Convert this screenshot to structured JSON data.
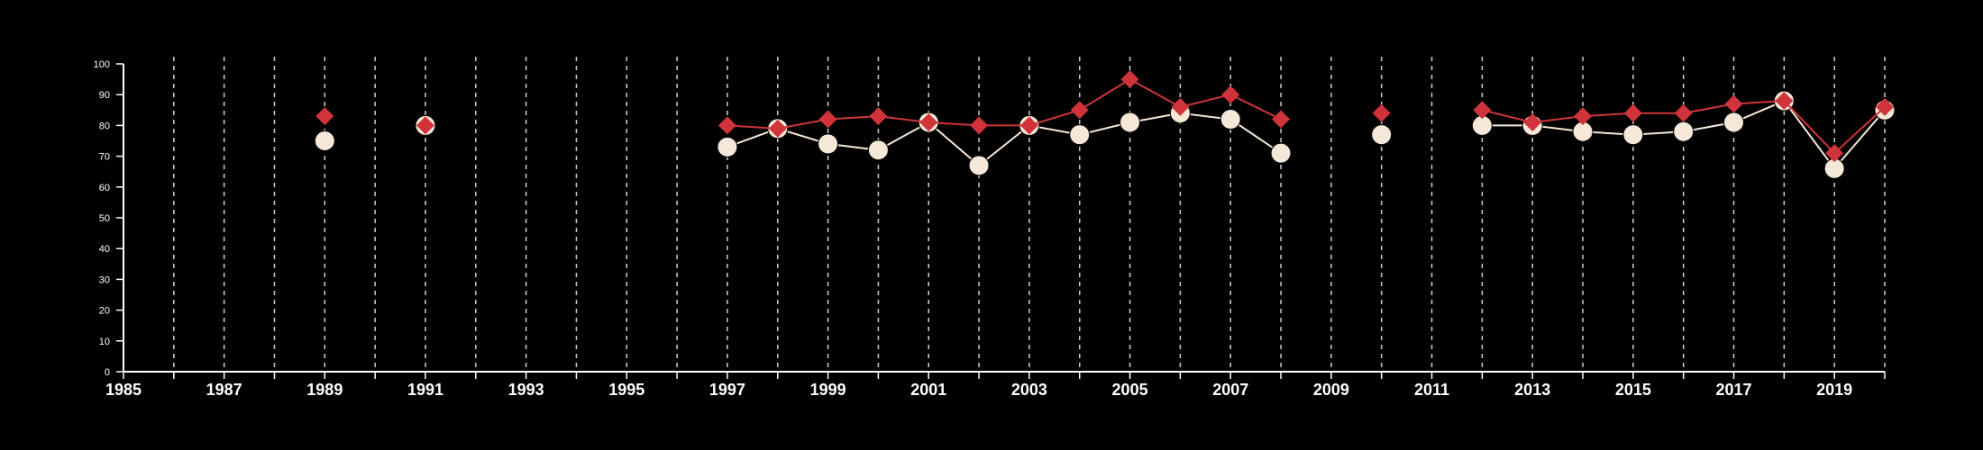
{
  "chart_data": {
    "type": "line",
    "title": "",
    "xlabel": "",
    "ylabel": "",
    "xlim": [
      1985,
      2020
    ],
    "ylim": [
      0,
      100
    ],
    "y_ticks": [
      0,
      10,
      20,
      30,
      40,
      50,
      60,
      70,
      80,
      90,
      100
    ],
    "x_ticks": [
      1985,
      1987,
      1989,
      1991,
      1993,
      1995,
      1997,
      1999,
      2001,
      2003,
      2005,
      2007,
      2009,
      2011,
      2013,
      2015,
      2017,
      2019
    ],
    "x_tick_labels": [
      "1985",
      "1987",
      "1989",
      "1991",
      "1993",
      "1995",
      "1997",
      "1999",
      "2001",
      "2003",
      "2005",
      "2007",
      "2009",
      "2011",
      "2013",
      "2015",
      "2017",
      "2019"
    ],
    "grid": "vertical dashed, every year",
    "legend": "none",
    "x": [
      1989,
      1991,
      1997,
      1998,
      1999,
      2000,
      2001,
      2002,
      2003,
      2004,
      2005,
      2006,
      2007,
      2008,
      2010,
      2012,
      2013,
      2014,
      2015,
      2016,
      2017,
      2018,
      2019,
      2020
    ],
    "series": [
      {
        "marker": "diamond",
        "color": "#d0343a",
        "values": [
          83,
          80,
          80,
          79,
          82,
          83,
          81,
          80,
          80,
          85,
          95,
          86,
          90,
          82,
          84,
          85,
          81,
          83,
          84,
          84,
          87,
          88,
          71,
          86
        ]
      },
      {
        "marker": "circle",
        "color": "#f6e8d8",
        "values": [
          75,
          80,
          73,
          79,
          74,
          72,
          81,
          67,
          80,
          77,
          81,
          84,
          82,
          71,
          77,
          80,
          80,
          78,
          77,
          78,
          81,
          88,
          66,
          85
        ]
      }
    ]
  },
  "colors": {
    "background": "#000000",
    "axis": "#ffffff",
    "grid": "#cfcfcf"
  }
}
